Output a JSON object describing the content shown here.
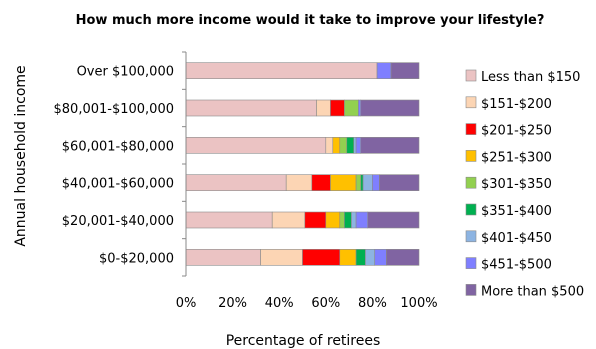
{
  "chart_data": {
    "type": "bar",
    "orientation": "horizontal",
    "stacked": true,
    "percent": true,
    "title": "How much more income would it take to improve your lifestyle?",
    "xlabel": "Percentage of retirees",
    "ylabel": "Annual household income",
    "xlim": [
      0,
      100
    ],
    "x_ticks": [
      "0%",
      "20%",
      "40%",
      "60%",
      "80%",
      "100%"
    ],
    "grid": false,
    "legend_position": "right",
    "categories": [
      "Over $100,000",
      "$80,001-$100,000",
      "$60,001-$80,000",
      "$40,001-$60,000",
      "$20,001-$40,000",
      "$0-$20,000"
    ],
    "series": [
      {
        "name": "Less than $150",
        "color": "#ebc3c3",
        "values": [
          82,
          56,
          60,
          43,
          37,
          32
        ]
      },
      {
        "name": "$151-$200",
        "color": "#fcd5b4",
        "values": [
          0,
          6,
          3,
          11,
          14,
          18
        ]
      },
      {
        "name": "$201-$250",
        "color": "#ff0000",
        "values": [
          0,
          6,
          0,
          8,
          9,
          16
        ]
      },
      {
        "name": "$251-$300",
        "color": "#ffc000",
        "values": [
          0,
          0,
          3,
          11,
          6,
          7
        ]
      },
      {
        "name": "$301-$350",
        "color": "#92d050",
        "values": [
          0,
          6,
          3,
          2,
          2,
          0
        ]
      },
      {
        "name": "$351-$400",
        "color": "#00b050",
        "values": [
          0,
          0,
          3,
          1,
          3,
          4
        ]
      },
      {
        "name": "$401-$450",
        "color": "#8db4e2",
        "values": [
          0,
          0,
          1,
          4,
          2,
          4
        ]
      },
      {
        "name": "$451-$500",
        "color": "#7f7fff",
        "values": [
          6,
          1,
          2,
          3,
          5,
          5
        ]
      },
      {
        "name": "More than $500",
        "color": "#8064a2",
        "values": [
          12,
          25,
          25,
          17,
          22,
          14
        ]
      }
    ]
  }
}
